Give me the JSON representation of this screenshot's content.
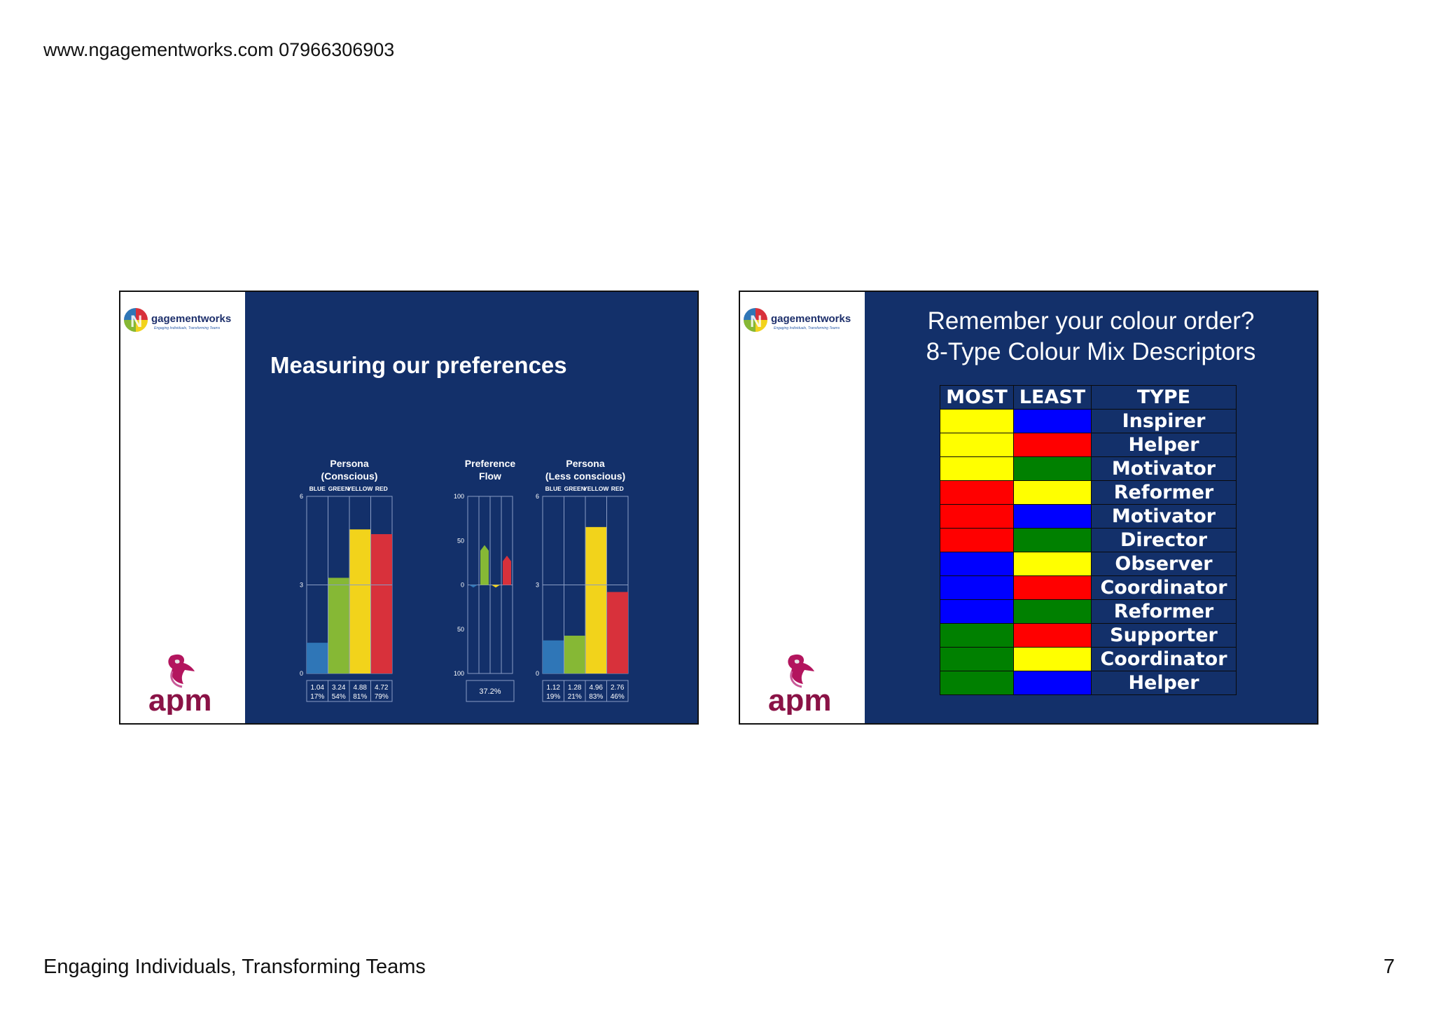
{
  "page": {
    "header": "www.ngagementworks.com  07966306903",
    "footer": "Engaging Individuals, Transforming Teams",
    "number": "7"
  },
  "logos": {
    "ngage_name": "gagementworks",
    "ngage_tagline": "Engaging Individuals, Transforming Teams",
    "apm": "apm"
  },
  "colors": {
    "slide_bg": "#13306a",
    "blue": "#2f76b7",
    "green": "#86b835",
    "yellow": "#f2d31b",
    "red": "#d8313b",
    "swatch_yellow": "#ffff00",
    "swatch_red": "#ff0000",
    "swatch_green": "#008000",
    "swatch_blue": "#0000ff"
  },
  "slide1": {
    "title": "Measuring our preferences",
    "chart_data": [
      {
        "type": "bar",
        "title": "Persona\n(Conscious)",
        "title_lines": [
          "Persona",
          "(Conscious)"
        ],
        "categories": [
          "BLUE",
          "GREEN",
          "YELLOW",
          "RED"
        ],
        "values": [
          1.04,
          3.24,
          4.88,
          4.72
        ],
        "percents": [
          "17%",
          "54%",
          "81%",
          "79%"
        ],
        "value_labels": [
          "1.04",
          "3.24",
          "4.88",
          "4.72"
        ],
        "ylim": [
          0,
          6
        ],
        "yticks": [
          "6",
          "3",
          "0"
        ]
      },
      {
        "type": "bar",
        "title_lines": [
          "Preference",
          "Flow"
        ],
        "categories": [
          "BLUE",
          "GREEN",
          "YELLOW",
          "RED"
        ],
        "values": [
          -3,
          45,
          -3,
          33
        ],
        "ylim": [
          -100,
          100
        ],
        "yticks": [
          "100",
          "50",
          "0",
          "50",
          "100"
        ],
        "summary": "37.2%"
      },
      {
        "type": "bar",
        "title_lines": [
          "Persona",
          "(Less conscious)"
        ],
        "categories": [
          "BLUE",
          "GREEN",
          "YELLOW",
          "RED"
        ],
        "values": [
          1.12,
          1.28,
          4.96,
          2.76
        ],
        "percents": [
          "19%",
          "21%",
          "83%",
          "46%"
        ],
        "value_labels": [
          "1.12",
          "1.28",
          "4.96",
          "2.76"
        ],
        "ylim": [
          0,
          6
        ],
        "yticks": [
          "6",
          "3",
          "0"
        ]
      }
    ]
  },
  "slide2": {
    "title_line1": "Remember your colour order?",
    "title_line2": "8-Type Colour Mix Descriptors",
    "headers": {
      "most": "MOST",
      "least": "LEAST",
      "type": "TYPE"
    },
    "rows": [
      {
        "most": "yellow",
        "least": "blue",
        "type": "Inspirer"
      },
      {
        "most": "yellow",
        "least": "red",
        "type": "Helper"
      },
      {
        "most": "yellow",
        "least": "green",
        "type": "Motivator"
      },
      {
        "most": "red",
        "least": "yellow",
        "type": "Reformer"
      },
      {
        "most": "red",
        "least": "blue",
        "type": "Motivator"
      },
      {
        "most": "red",
        "least": "green",
        "type": "Director"
      },
      {
        "most": "blue",
        "least": "yellow",
        "type": "Observer"
      },
      {
        "most": "blue",
        "least": "red",
        "type": "Coordinator"
      },
      {
        "most": "blue",
        "least": "green",
        "type": "Reformer"
      },
      {
        "most": "green",
        "least": "red",
        "type": "Supporter"
      },
      {
        "most": "green",
        "least": "yellow",
        "type": "Coordinator"
      },
      {
        "most": "green",
        "least": "blue",
        "type": "Helper"
      }
    ]
  }
}
